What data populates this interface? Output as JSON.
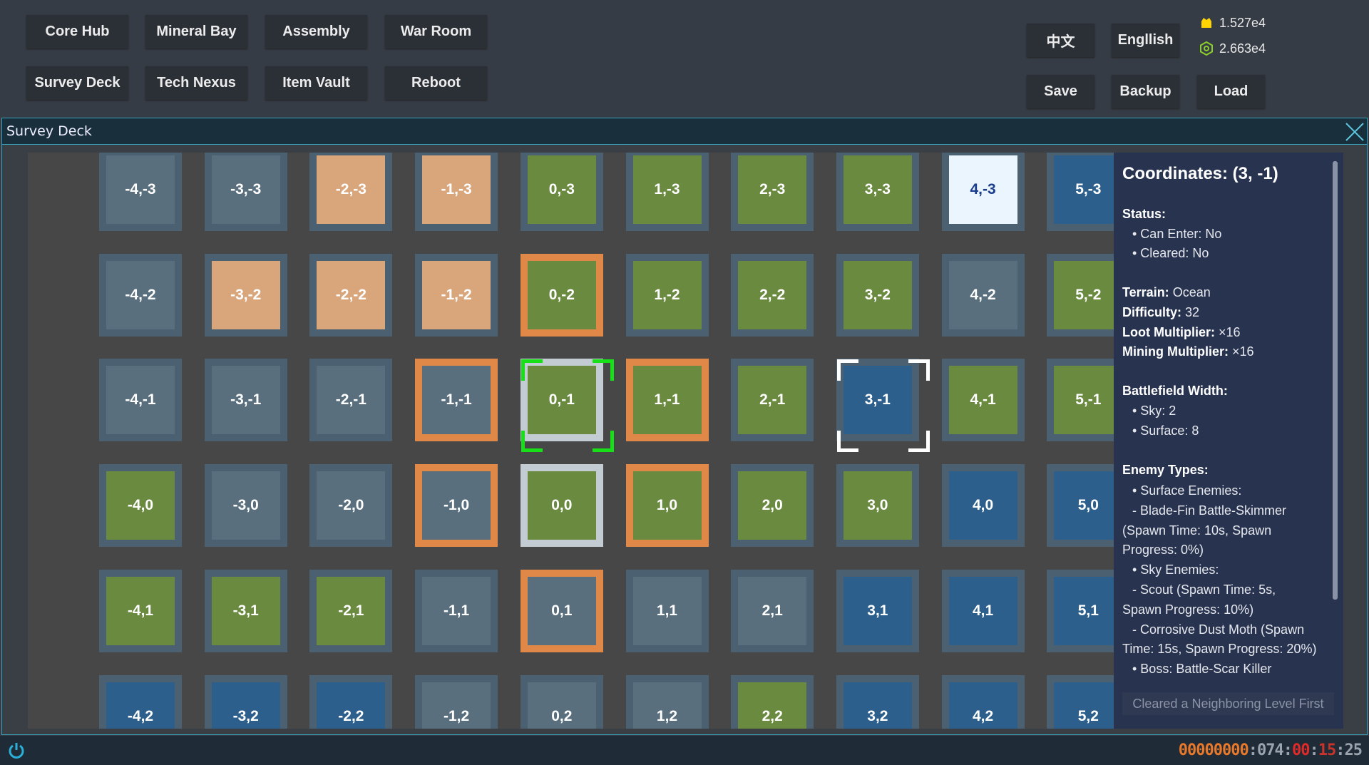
{
  "nav": {
    "row1": [
      "Core Hub",
      "Mineral Bay",
      "Assembly",
      "War Room"
    ],
    "row2": [
      "Survey Deck",
      "Tech Nexus",
      "Item Vault",
      "Reboot"
    ]
  },
  "lang": [
    "中文",
    "Engllish"
  ],
  "actions": [
    "Save",
    "Backup",
    "Load"
  ],
  "resources": [
    "1.527e4",
    "2.663e4"
  ],
  "window": {
    "title": "Survey Deck"
  },
  "grid": {
    "rows": [
      [
        "-4,-3",
        "-3,-3",
        "-2,-3",
        "-1,-3",
        "0,-3",
        "1,-3",
        "2,-3",
        "3,-3",
        "4,-3",
        "5,-3"
      ],
      [
        "-4,-2",
        "-3,-2",
        "-2,-2",
        "-1,-2",
        "0,-2",
        "1,-2",
        "2,-2",
        "3,-2",
        "4,-2",
        "5,-2"
      ],
      [
        "-4,-1",
        "-3,-1",
        "-2,-1",
        "-1,-1",
        "0,-1",
        "1,-1",
        "2,-1",
        "3,-1",
        "4,-1",
        "5,-1"
      ],
      [
        "-4,0",
        "-3,0",
        "-2,0",
        "-1,0",
        "0,0",
        "1,0",
        "2,0",
        "3,0",
        "4,0",
        "5,0"
      ],
      [
        "-4,1",
        "-3,1",
        "-2,1",
        "-1,1",
        "0,1",
        "1,1",
        "2,1",
        "3,1",
        "4,1",
        "5,1"
      ],
      [
        "-4,2",
        "-3,2",
        "-2,2",
        "-1,2",
        "0,2",
        "1,2",
        "2,2",
        "3,2",
        "4,2",
        "5,2"
      ]
    ]
  },
  "panel": {
    "title": "Coordinates: (3, -1)",
    "status": {
      "label": "Status:",
      "items": [
        "• Can Enter: No",
        "• Cleared: No"
      ]
    },
    "terrain": {
      "label": "Terrain:",
      "value": "Ocean"
    },
    "difficulty": {
      "label": "Difficulty:",
      "value": 32
    },
    "loot": {
      "label": "Loot Multiplier:",
      "value": "×16"
    },
    "mining": {
      "label": "Mining Multiplier:",
      "value": "×16"
    },
    "battlefield": {
      "label": "Battlefield Width:",
      "items": [
        "• Sky: 2",
        "• Surface: 8"
      ]
    },
    "enemies": {
      "label": "Enemy Types:",
      "lines": [
        "• Surface Enemies:",
        "- Blade-Fin Battle-Skimmer",
        "(Spawn Time: 10s, Spawn",
        "Progress: 0%)",
        "• Sky Enemies:",
        "- Scout (Spawn Time: 5s,",
        "Spawn Progress: 10%)",
        "- Corrosive Dust Moth (Spawn",
        "Time: 15s, Spawn Progress: 20%)",
        "• Boss: Battle-Scar Killer"
      ]
    },
    "button": "Cleared a Neighboring Level First"
  },
  "clock": [
    "00000000",
    ":",
    "074",
    ":",
    "00",
    ":",
    "15",
    ":",
    "25"
  ]
}
